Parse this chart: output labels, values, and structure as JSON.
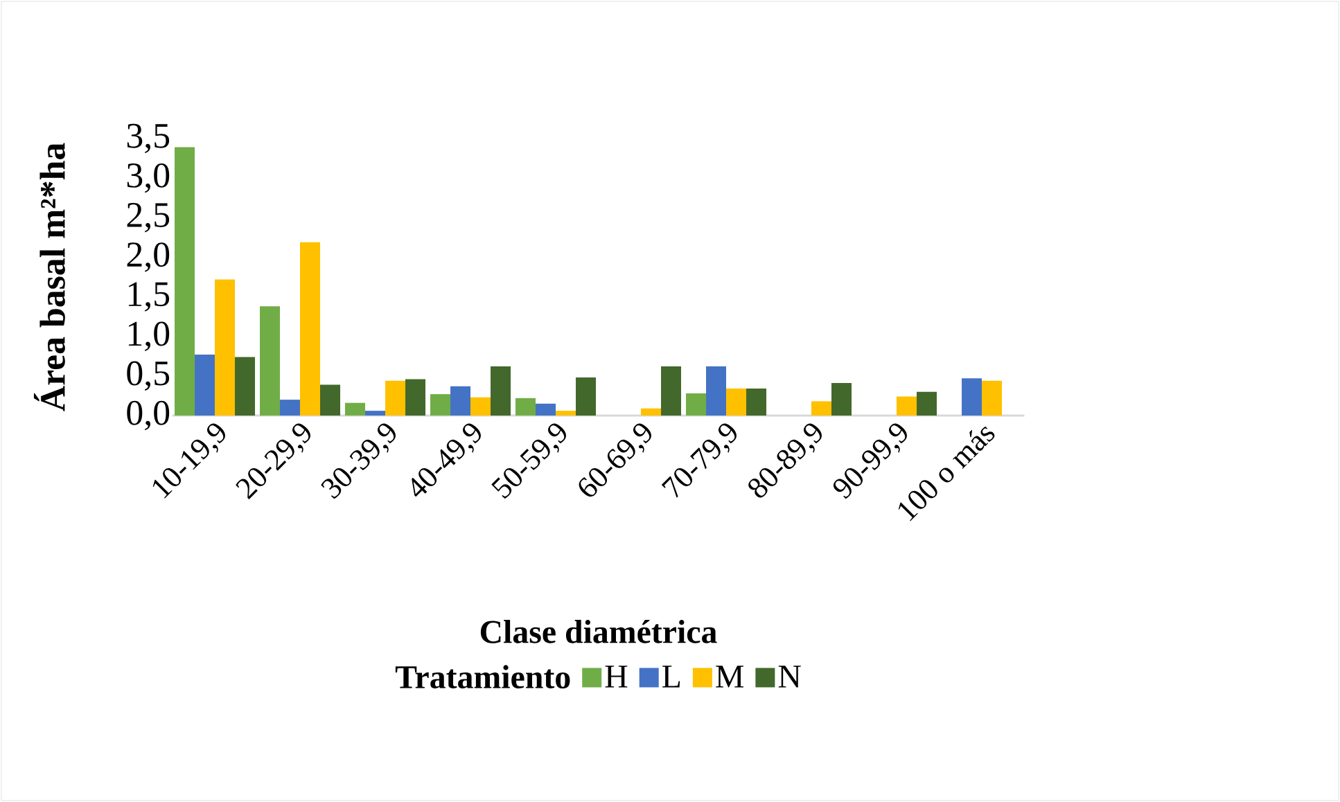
{
  "chart_data": {
    "type": "bar",
    "xlabel": "Clase diamétrica",
    "ylabel": "Área basal  m²*ha",
    "legend_title": "Tratamiento",
    "categories": [
      "10-19,9",
      "20-29,9",
      "30-39,9",
      "40-49,9",
      "50-59,9",
      "60-69,9",
      "70-79,9",
      "80-89,9",
      "90-99,9",
      "100 o más"
    ],
    "series": [
      {
        "name": "H",
        "color": "#70ad47",
        "values": [
          3.39,
          1.38,
          0.16,
          0.27,
          0.22,
          null,
          0.28,
          null,
          null,
          null
        ]
      },
      {
        "name": "L",
        "color": "#4472c4",
        "values": [
          0.77,
          0.2,
          0.06,
          0.37,
          0.15,
          null,
          0.62,
          null,
          null,
          0.47
        ]
      },
      {
        "name": "M",
        "color": "#ffc000",
        "values": [
          1.72,
          2.19,
          0.44,
          0.23,
          0.06,
          0.09,
          0.34,
          0.18,
          0.24,
          0.44
        ]
      },
      {
        "name": "N",
        "color": "#43682b",
        "values": [
          0.74,
          0.39,
          0.46,
          0.62,
          0.48,
          0.62,
          0.34,
          0.41,
          0.3,
          null
        ]
      }
    ],
    "ylim": [
      0,
      3.5
    ],
    "yticks": [
      {
        "value": 0,
        "label": "0,0"
      },
      {
        "value": 0.5,
        "label": "0,5"
      },
      {
        "value": 1,
        "label": "1,0"
      },
      {
        "value": 1.5,
        "label": "1,5"
      },
      {
        "value": 2,
        "label": "2,0"
      },
      {
        "value": 2.5,
        "label": "2,5"
      },
      {
        "value": 3,
        "label": "3,0"
      },
      {
        "value": 3.5,
        "label": "3,5"
      }
    ],
    "grid": false,
    "legend": "bottom"
  }
}
